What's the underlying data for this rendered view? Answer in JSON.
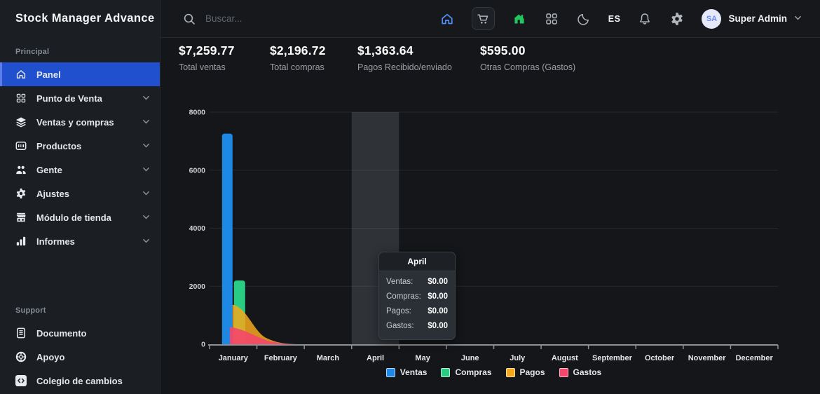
{
  "topbar": {
    "logo": "Stock Manager Advance",
    "search_placeholder": "Buscar...",
    "nav_icons": [
      {
        "icon": "home-icon",
        "color": "#4f8efa",
        "boxed": false
      },
      {
        "icon": "cart-icon",
        "color": "#a7adb3",
        "boxed": true
      },
      {
        "icon": "store-icon",
        "color": "#22c55e",
        "boxed": false
      },
      {
        "icon": "apps-icon",
        "color": "#b0b6bc",
        "boxed": false
      },
      {
        "icon": "moon-icon",
        "color": "#b0b6bc",
        "boxed": false
      }
    ],
    "language": "ES",
    "right_icons": [
      {
        "icon": "bell-icon",
        "color": "#b0b6bc"
      },
      {
        "icon": "gear-icon",
        "color": "#b0b6bc"
      }
    ],
    "user": {
      "initials": "SA",
      "name": "Super Admin"
    }
  },
  "sidebar": {
    "sections": [
      {
        "label": "Principal",
        "items": [
          {
            "label": "Panel",
            "icon": "home-icon",
            "active": true,
            "chevron": false
          },
          {
            "label": "Punto de Venta",
            "icon": "apps-icon",
            "active": false,
            "chevron": true
          },
          {
            "label": "Ventas y compras",
            "icon": "layers-icon",
            "active": false,
            "chevron": true
          },
          {
            "label": "Productos",
            "icon": "product-box-icon",
            "active": false,
            "chevron": true
          },
          {
            "label": "Gente",
            "icon": "people-icon",
            "active": false,
            "chevron": true
          },
          {
            "label": "Ajustes",
            "icon": "gear-icon",
            "active": false,
            "chevron": true
          },
          {
            "label": "Módulo de tienda",
            "icon": "storefront-icon",
            "active": false,
            "chevron": true
          },
          {
            "label": "Informes",
            "icon": "bar-chart-icon",
            "active": false,
            "chevron": true
          }
        ]
      },
      {
        "label": "Support",
        "items": [
          {
            "label": "Documento",
            "icon": "document-icon",
            "active": false,
            "chevron": false
          },
          {
            "label": "Apoyo",
            "icon": "lifebuoy-icon",
            "active": false,
            "chevron": false
          },
          {
            "label": "Colegio de cambios",
            "icon": "code-icon",
            "active": false,
            "chevron": false
          }
        ]
      }
    ]
  },
  "stats": [
    {
      "value": "$7,259.77",
      "label": "Total ventas"
    },
    {
      "value": "$2,196.72",
      "label": "Total compras"
    },
    {
      "value": "$1,363.64",
      "label": "Pagos Recibido/enviado"
    },
    {
      "value": "$595.00",
      "label": "Otras Compras (Gastos)"
    }
  ],
  "chart_data": {
    "type": "mixed",
    "categories": [
      "January",
      "February",
      "March",
      "April",
      "May",
      "June",
      "July",
      "August",
      "September",
      "October",
      "November",
      "December"
    ],
    "series": [
      {
        "name": "Ventas",
        "type": "bar",
        "color": "#1e88e5",
        "values": [
          7259.77,
          0,
          0,
          0,
          0,
          0,
          0,
          0,
          0,
          0,
          0,
          0
        ]
      },
      {
        "name": "Compras",
        "type": "bar",
        "color": "#2acc84",
        "values": [
          2196.72,
          0,
          0,
          0,
          0,
          0,
          0,
          0,
          0,
          0,
          0,
          0
        ]
      },
      {
        "name": "Pagos",
        "type": "area",
        "color": "#f5a81c",
        "values": [
          1363.64,
          0,
          0,
          0,
          0,
          0,
          0,
          0,
          0,
          0,
          0,
          0
        ]
      },
      {
        "name": "Gastos",
        "type": "area",
        "color": "#f5476b",
        "values": [
          595.0,
          0,
          0,
          0,
          0,
          0,
          0,
          0,
          0,
          0,
          0,
          0
        ]
      }
    ],
    "ylim": [
      0,
      8000
    ],
    "yticks": [
      0,
      2000,
      4000,
      6000,
      8000
    ],
    "grid": true,
    "legend_position": "bottom",
    "highlighted_category": "April"
  },
  "tooltip": {
    "title": "April",
    "rows": [
      {
        "label": "Ventas:",
        "value": "$0.00"
      },
      {
        "label": "Compras:",
        "value": "$0.00"
      },
      {
        "label": "Pagos:",
        "value": "$0.00"
      },
      {
        "label": "Gastos:",
        "value": "$0.00"
      }
    ]
  }
}
